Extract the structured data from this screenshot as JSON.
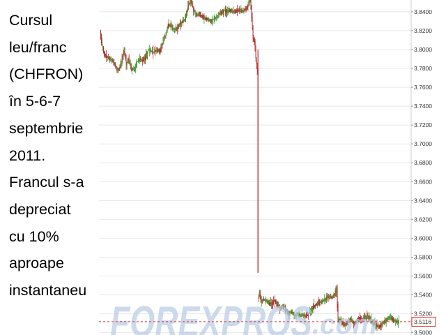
{
  "caption": {
    "lines": [
      "Cursul",
      "leu/franc",
      "(CHFRON)",
      "în 5-6-7",
      "septembrie",
      "2011.",
      "Francul s-a",
      "depreciat",
      "cu 10%",
      "aproape",
      "instantaneu"
    ]
  },
  "watermark": {
    "brand": "FOREXPROS",
    "suffix": ".com",
    "color": "#b9cce6"
  },
  "colors": {
    "up": "#3d9a2a",
    "down": "#b02a2a",
    "crash": "#c03030",
    "grid": "#e8e8e8",
    "axis_text": "#333333",
    "last_price": "#d83030"
  },
  "chart_data": {
    "type": "candlestick",
    "title": "",
    "xlabel": "",
    "ylabel": "",
    "ylim": [
      3.4975,
      3.8525
    ],
    "y_ticks": [
      3.84,
      3.82,
      3.8,
      3.78,
      3.76,
      3.74,
      3.72,
      3.7,
      3.68,
      3.66,
      3.64,
      3.62,
      3.6,
      3.58,
      3.56,
      3.54,
      3.52,
      3.5
    ],
    "y_tick_labels": [
      "3.8400",
      "3.8200",
      "3.8000",
      "3.7800",
      "3.7600",
      "3.7400",
      "3.7200",
      "3.7000",
      "3.6800",
      "3.6600",
      "3.6400",
      "3.6200",
      "3.6000",
      "3.5800",
      "3.5600",
      "3.5400",
      "3.5200",
      "3.5000"
    ],
    "grid": true,
    "last_price": 3.5116,
    "last_price_label": "3.5116",
    "price_path": [
      [
        0,
        3.818
      ],
      [
        3,
        3.805
      ],
      [
        6,
        3.795
      ],
      [
        10,
        3.792
      ],
      [
        14,
        3.79
      ],
      [
        18,
        3.788
      ],
      [
        22,
        3.782
      ],
      [
        26,
        3.778
      ],
      [
        30,
        3.786
      ],
      [
        34,
        3.8
      ],
      [
        37,
        3.784
      ],
      [
        40,
        3.79
      ],
      [
        44,
        3.78
      ],
      [
        48,
        3.778
      ],
      [
        52,
        3.787
      ],
      [
        56,
        3.79
      ],
      [
        60,
        3.788
      ],
      [
        64,
        3.792
      ],
      [
        68,
        3.8
      ],
      [
        72,
        3.798
      ],
      [
        76,
        3.797
      ],
      [
        80,
        3.8
      ],
      [
        84,
        3.798
      ],
      [
        88,
        3.806
      ],
      [
        92,
        3.815
      ],
      [
        96,
        3.825
      ],
      [
        100,
        3.826
      ],
      [
        104,
        3.82
      ],
      [
        108,
        3.822
      ],
      [
        112,
        3.826
      ],
      [
        116,
        3.83
      ],
      [
        120,
        3.832
      ],
      [
        124,
        3.846
      ],
      [
        128,
        3.852
      ],
      [
        132,
        3.842
      ],
      [
        136,
        3.836
      ],
      [
        140,
        3.838
      ],
      [
        144,
        3.835
      ],
      [
        148,
        3.833
      ],
      [
        152,
        3.832
      ],
      [
        156,
        3.83
      ],
      [
        160,
        3.832
      ],
      [
        164,
        3.834
      ],
      [
        168,
        3.838
      ],
      [
        172,
        3.84
      ],
      [
        176,
        3.842
      ],
      [
        180,
        3.84
      ],
      [
        184,
        3.842
      ],
      [
        188,
        3.84
      ],
      [
        192,
        3.841
      ],
      [
        196,
        3.842
      ],
      [
        200,
        3.84
      ],
      [
        204,
        3.842
      ],
      [
        208,
        3.845
      ],
      [
        212,
        3.852
      ],
      [
        214,
        3.836
      ],
      [
        216,
        3.812
      ],
      [
        218,
        3.808
      ],
      [
        220,
        3.79
      ],
      [
        222,
        3.776
      ],
      [
        222.5,
        3.565
      ],
      [
        223,
        3.535
      ],
      [
        225,
        3.543
      ],
      [
        227,
        3.532
      ],
      [
        230,
        3.535
      ],
      [
        234,
        3.534
      ],
      [
        238,
        3.532
      ],
      [
        242,
        3.53
      ],
      [
        246,
        3.534
      ],
      [
        250,
        3.53
      ],
      [
        254,
        3.526
      ],
      [
        258,
        3.528
      ],
      [
        262,
        3.524
      ],
      [
        266,
        3.52
      ],
      [
        270,
        3.522
      ],
      [
        274,
        3.518
      ],
      [
        278,
        3.52
      ],
      [
        282,
        3.518
      ],
      [
        286,
        3.519
      ],
      [
        290,
        3.517
      ],
      [
        294,
        3.52
      ],
      [
        298,
        3.524
      ],
      [
        302,
        3.528
      ],
      [
        306,
        3.53
      ],
      [
        310,
        3.532
      ],
      [
        314,
        3.533
      ],
      [
        318,
        3.536
      ],
      [
        322,
        3.538
      ],
      [
        326,
        3.537
      ],
      [
        330,
        3.54
      ],
      [
        334,
        3.545
      ],
      [
        336,
        3.512
      ],
      [
        338,
        3.514
      ],
      [
        342,
        3.51
      ],
      [
        346,
        3.508
      ],
      [
        350,
        3.511
      ],
      [
        354,
        3.514
      ],
      [
        358,
        3.51
      ],
      [
        362,
        3.512
      ],
      [
        366,
        3.515
      ],
      [
        370,
        3.513
      ],
      [
        374,
        3.516
      ],
      [
        378,
        3.518
      ],
      [
        382,
        3.513
      ],
      [
        386,
        3.51
      ],
      [
        390,
        3.508
      ],
      [
        394,
        3.506
      ],
      [
        398,
        3.509
      ],
      [
        402,
        3.512
      ],
      [
        406,
        3.515
      ],
      [
        410,
        3.516
      ],
      [
        414,
        3.513
      ],
      [
        418,
        3.512
      ],
      [
        422,
        3.5116
      ]
    ]
  }
}
